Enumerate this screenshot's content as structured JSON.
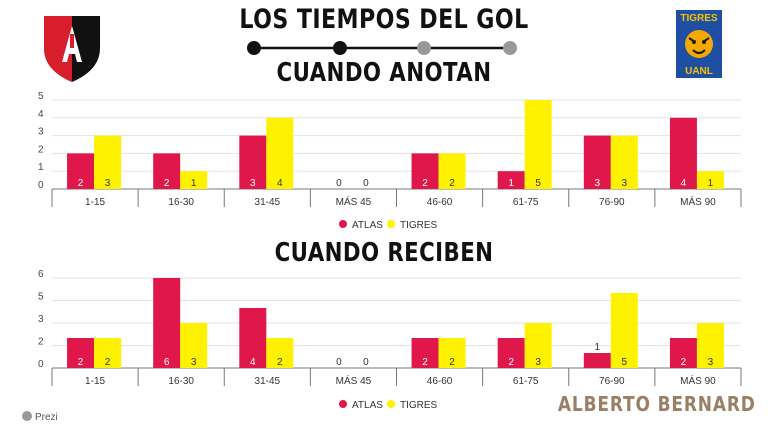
{
  "header": {
    "title": "LOS TIEMPOS DEL GOL",
    "subtitle_scored": "CUANDO ANOTAN",
    "subtitle_conceded": "CUANDO RECIBEN",
    "team_left_logo": "atlas-shield-logo",
    "team_right_logo": "tigres-uanl-logo",
    "team_right_logo_text_top": "TIGRES",
    "team_right_logo_text_bottom": "UANL"
  },
  "footer": {
    "brand": "Prezi",
    "author": "ALBERTO BERNARD"
  },
  "colors": {
    "atlas": "#e0174a",
    "tigres": "#fff200",
    "grid": "#e3e3e3",
    "axis": "#777777"
  },
  "chart_data": [
    {
      "type": "bar",
      "title": "CUANDO ANOTAN",
      "categories": [
        "1-15",
        "16-30",
        "31-45",
        "MÁS 45",
        "46-60",
        "61-75",
        "76-90",
        "MÁS 90"
      ],
      "y_ticks": [
        "0",
        "1",
        "2",
        "3",
        "4",
        "5"
      ],
      "ylim": [
        0,
        5
      ],
      "grid": true,
      "legend": "bottom-center",
      "series": [
        {
          "name": "ATLAS",
          "color": "#e0174a",
          "values": [
            2,
            2,
            3,
            0,
            2,
            1,
            3,
            4
          ]
        },
        {
          "name": "TIGRES",
          "color": "#fff200",
          "values": [
            3,
            1,
            4,
            0,
            2,
            5,
            3,
            1
          ]
        }
      ]
    },
    {
      "type": "bar",
      "title": "CUANDO RECIBEN",
      "categories": [
        "1-15",
        "16-30",
        "31-45",
        "MÁS 45",
        "46-60",
        "61-75",
        "76-90",
        "MÁS 90"
      ],
      "y_ticks": [
        "0",
        "2",
        "3",
        "5",
        "6"
      ],
      "ylim": [
        0,
        6
      ],
      "grid": true,
      "legend": "bottom-center",
      "series": [
        {
          "name": "ATLAS",
          "color": "#e0174a",
          "values": [
            2,
            6,
            4,
            0,
            2,
            2,
            1,
            2
          ]
        },
        {
          "name": "TIGRES",
          "color": "#fff200",
          "values": [
            2,
            3,
            2,
            0,
            2,
            3,
            5,
            3
          ]
        }
      ]
    }
  ]
}
